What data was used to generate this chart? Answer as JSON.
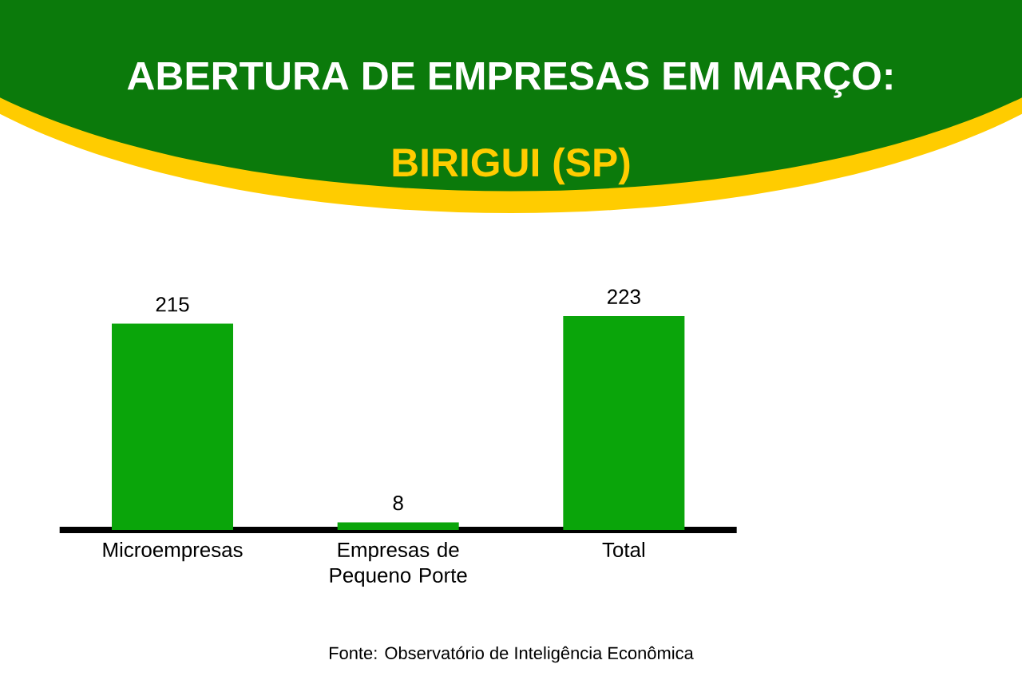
{
  "chart_data": {
    "type": "bar",
    "title": "ABERTURA DE EMPRESAS EM MARÇO:",
    "subtitle": "BIRIGUI (SP)",
    "categories": [
      "Microempresas",
      "Empresas de Pequeno Porte",
      "Total"
    ],
    "values": [
      215,
      8,
      223
    ],
    "color": "#0aa50a",
    "data_labels": true,
    "annotations": [
      "Fonte: Observatório de Inteligência Econômica"
    ]
  }
}
